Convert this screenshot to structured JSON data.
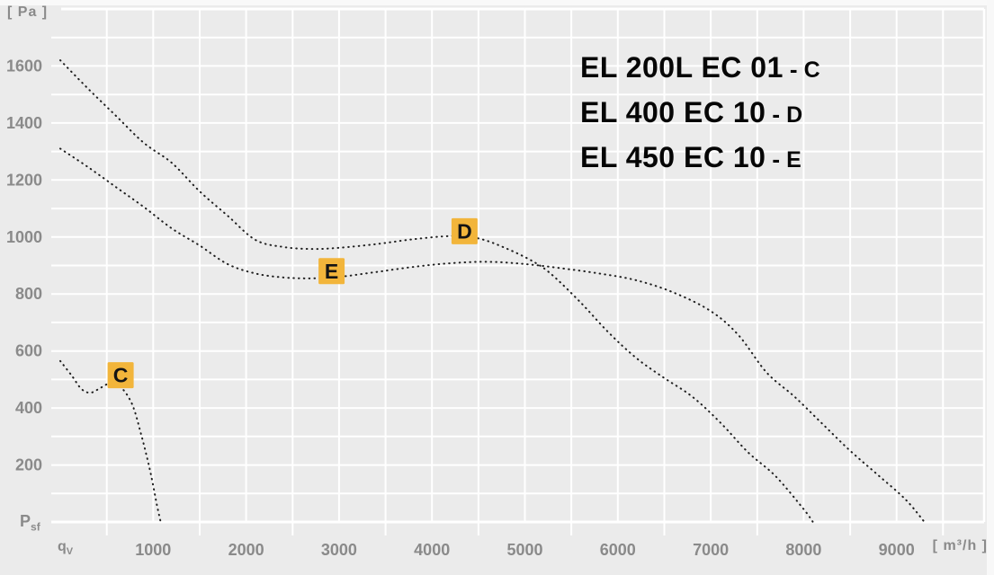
{
  "labels": {
    "y_unit": "[ Pa ]",
    "y_origin_main": "P",
    "y_origin_sub": "sf",
    "x_origin_main": "q",
    "x_origin_sub": "V",
    "x_unit": "[ m³/h ]"
  },
  "legend": {
    "separator": "-",
    "items": [
      {
        "model": "EL 200L EC 01",
        "key": "C"
      },
      {
        "model": "EL 400 EC 10",
        "key": "D"
      },
      {
        "model": "EL 450 EC 10",
        "key": "E"
      }
    ]
  },
  "colors": {
    "page_bg": "#ebebeb",
    "grid": "#ffffff",
    "axis_text": "#8a8a8a",
    "curve": "#1f1f1f",
    "marker_bg": "#F2B53B",
    "marker_text": "#141414",
    "legend_text": "#060606"
  },
  "chart_data": {
    "type": "line",
    "title": "",
    "xlabel": "qV [m³/h]",
    "ylabel": "Psf [Pa]",
    "xlim": [
      0,
      9950
    ],
    "ylim": [
      0,
      1800
    ],
    "grid": true,
    "grid_minor_step_x": 500,
    "grid_minor_step_y": 100,
    "x_ticks_labeled": [
      1000,
      2000,
      3000,
      4000,
      5000,
      6000,
      7000,
      8000,
      9000
    ],
    "y_ticks_labeled": [
      200,
      400,
      600,
      800,
      1000,
      1200,
      1400,
      1600
    ],
    "legend_position": "top-right",
    "line_style": "dotted",
    "series": [
      {
        "name": "EL 200L EC 01",
        "key": "C",
        "marker": {
          "q": 650,
          "pa": 515
        },
        "points": [
          [
            0,
            565
          ],
          [
            120,
            515
          ],
          [
            230,
            466
          ],
          [
            330,
            454
          ],
          [
            440,
            472
          ],
          [
            560,
            490
          ],
          [
            660,
            470
          ],
          [
            740,
            435
          ],
          [
            800,
            390
          ],
          [
            860,
            320
          ],
          [
            920,
            245
          ],
          [
            980,
            160
          ],
          [
            1040,
            60
          ],
          [
            1080,
            0
          ]
        ]
      },
      {
        "name": "EL 400 EC 10",
        "key": "D",
        "marker": {
          "q": 4350,
          "pa": 1020
        },
        "points": [
          [
            0,
            1620
          ],
          [
            300,
            1520
          ],
          [
            600,
            1425
          ],
          [
            900,
            1330
          ],
          [
            1200,
            1260
          ],
          [
            1500,
            1160
          ],
          [
            1800,
            1075
          ],
          [
            2100,
            990
          ],
          [
            2400,
            965
          ],
          [
            2700,
            958
          ],
          [
            3000,
            962
          ],
          [
            3400,
            975
          ],
          [
            3800,
            992
          ],
          [
            4200,
            1003
          ],
          [
            4500,
            995
          ],
          [
            4800,
            960
          ],
          [
            5100,
            912
          ],
          [
            5300,
            865
          ],
          [
            5600,
            770
          ],
          [
            5900,
            665
          ],
          [
            6200,
            575
          ],
          [
            6500,
            505
          ],
          [
            6800,
            440
          ],
          [
            7100,
            350
          ],
          [
            7400,
            245
          ],
          [
            7700,
            160
          ],
          [
            8000,
            45
          ],
          [
            8100,
            0
          ]
        ]
      },
      {
        "name": "EL 450 EC 10",
        "key": "E",
        "marker": {
          "q": 2920,
          "pa": 880
        },
        "points": [
          [
            0,
            1310
          ],
          [
            300,
            1245
          ],
          [
            600,
            1175
          ],
          [
            900,
            1105
          ],
          [
            1200,
            1030
          ],
          [
            1500,
            970
          ],
          [
            1800,
            905
          ],
          [
            2100,
            872
          ],
          [
            2400,
            858
          ],
          [
            2700,
            855
          ],
          [
            3000,
            860
          ],
          [
            3400,
            877
          ],
          [
            3800,
            895
          ],
          [
            4200,
            908
          ],
          [
            4600,
            913
          ],
          [
            5000,
            905
          ],
          [
            5400,
            890
          ],
          [
            5800,
            872
          ],
          [
            6200,
            848
          ],
          [
            6600,
            805
          ],
          [
            7000,
            740
          ],
          [
            7300,
            655
          ],
          [
            7600,
            525
          ],
          [
            7900,
            440
          ],
          [
            8200,
            345
          ],
          [
            8500,
            250
          ],
          [
            8800,
            165
          ],
          [
            9100,
            78
          ],
          [
            9300,
            0
          ]
        ]
      }
    ]
  }
}
